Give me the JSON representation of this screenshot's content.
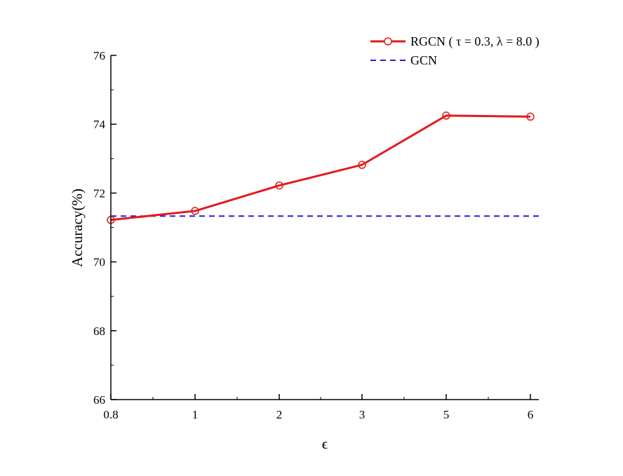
{
  "chart_data": {
    "type": "line",
    "xlabel": "ϵ",
    "ylabel": "Accuracy(%)",
    "categories": [
      "0.8",
      "1",
      "2",
      "3",
      "5",
      "6"
    ],
    "ylim": [
      66,
      76
    ],
    "yticks": [
      "66",
      "68",
      "70",
      "72",
      "74",
      "76"
    ],
    "legend_position": "top-right",
    "grid": false,
    "series": [
      {
        "name": "RGCN ( τ = 0.3, λ = 8.0 )",
        "color": "#e31a1c",
        "style": "solid",
        "marker": "open-circle",
        "values": [
          71.22,
          71.48,
          72.22,
          72.82,
          74.25,
          74.22
        ]
      },
      {
        "name": "GCN",
        "color": "#1f1fd6",
        "style": "dashed",
        "marker": "none",
        "values": [
          71.33,
          71.33,
          71.33,
          71.33,
          71.33,
          71.33
        ]
      }
    ]
  }
}
